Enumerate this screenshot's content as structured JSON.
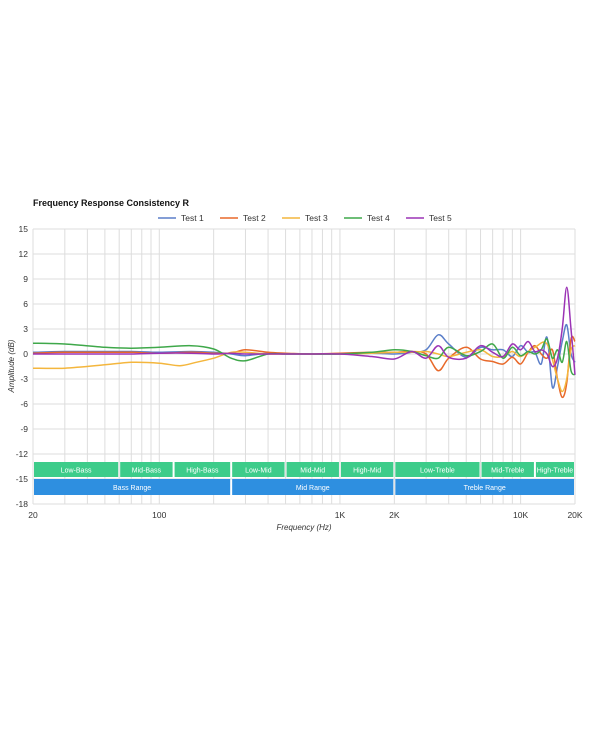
{
  "chart_data": {
    "type": "line",
    "title": "Frequency Response Consistency R",
    "xlabel": "Frequency (Hz)",
    "ylabel": "Amplitude (dB)",
    "xscale": "log",
    "xlim": [
      20,
      20000
    ],
    "ylim": [
      -18,
      15
    ],
    "grid": true,
    "legend_position": "top-center",
    "x_ticks": [
      {
        "value": 20,
        "label": "20"
      },
      {
        "value": 100,
        "label": "100"
      },
      {
        "value": 1000,
        "label": "1K"
      },
      {
        "value": 2000,
        "label": "2K"
      },
      {
        "value": 10000,
        "label": "10K"
      },
      {
        "value": 20000,
        "label": "20K"
      }
    ],
    "y_ticks": [
      15,
      12,
      9,
      6,
      3,
      0,
      -3,
      -6,
      -9,
      -12,
      -15,
      -18
    ],
    "x_grid": [
      30,
      40,
      50,
      60,
      70,
      80,
      90,
      100,
      200,
      300,
      400,
      500,
      600,
      700,
      800,
      900,
      1000,
      2000,
      3000,
      4000,
      5000,
      6000,
      7000,
      8000,
      9000,
      10000,
      20000
    ],
    "frequency_bands": [
      {
        "label": "Low-Bass",
        "from": 20,
        "to": 60
      },
      {
        "label": "Mid-Bass",
        "from": 60,
        "to": 120
      },
      {
        "label": "High-Bass",
        "from": 120,
        "to": 250
      },
      {
        "label": "Low-Mid",
        "from": 250,
        "to": 500
      },
      {
        "label": "Mid-Mid",
        "from": 500,
        "to": 1000
      },
      {
        "label": "High-Mid",
        "from": 1000,
        "to": 2000
      },
      {
        "label": "Low-Treble",
        "from": 2000,
        "to": 6000
      },
      {
        "label": "Mid-Treble",
        "from": 6000,
        "to": 12000
      },
      {
        "label": "High-Treble",
        "from": 12000,
        "to": 20000
      }
    ],
    "ranges": [
      {
        "label": "Bass Range",
        "from": 20,
        "to": 250
      },
      {
        "label": "Mid Range",
        "from": 250,
        "to": 2000
      },
      {
        "label": "Treble Range",
        "from": 2000,
        "to": 20000
      }
    ],
    "series": [
      {
        "name": "Test 1",
        "color": "#5b7fc9",
        "x": [
          20,
          30,
          50,
          70,
          100,
          150,
          200,
          250,
          300,
          400,
          500,
          700,
          1000,
          1500,
          2000,
          2500,
          3000,
          3500,
          4000,
          5000,
          6000,
          7000,
          8000,
          9000,
          10000,
          11000,
          12000,
          13000,
          14000,
          15000,
          16000,
          17000,
          18000,
          19000,
          20000
        ],
        "y": [
          0.2,
          0.3,
          0.3,
          0.3,
          0.2,
          0.3,
          0.2,
          0.0,
          -0.2,
          0.1,
          0.0,
          0.0,
          0.0,
          0.1,
          0.0,
          0.2,
          0.5,
          2.3,
          1.2,
          -0.4,
          0.8,
          0.5,
          0.5,
          -0.3,
          1.0,
          0.2,
          0.2,
          -1.2,
          2.0,
          -4.0,
          -1.5,
          1.5,
          3.5,
          0.0,
          -1.0
        ]
      },
      {
        "name": "Test 2",
        "color": "#e8692a",
        "x": [
          20,
          30,
          50,
          70,
          100,
          150,
          200,
          250,
          300,
          400,
          500,
          700,
          1000,
          1500,
          2000,
          2500,
          3000,
          3500,
          4000,
          5000,
          6000,
          7000,
          8000,
          9000,
          10000,
          11000,
          12000,
          13000,
          14000,
          15000,
          16000,
          17000,
          18000,
          19000,
          20000
        ],
        "y": [
          0.1,
          0.2,
          0.2,
          0.2,
          0.1,
          0.2,
          0.1,
          0.1,
          0.5,
          0.2,
          0.1,
          0.0,
          0.1,
          0.2,
          0.2,
          0.3,
          0.0,
          -2.0,
          -0.5,
          0.8,
          -0.6,
          -0.9,
          -1.2,
          -0.4,
          -1.2,
          0.2,
          1.0,
          0.0,
          -0.5,
          0.5,
          -3.0,
          -5.2,
          -3.5,
          1.8,
          1.5
        ]
      },
      {
        "name": "Test 3",
        "color": "#f4b63d",
        "x": [
          20,
          30,
          50,
          70,
          100,
          130,
          160,
          200,
          250,
          300,
          400,
          500,
          700,
          1000,
          1500,
          2000,
          2500,
          3000,
          3500,
          4000,
          5000,
          6000,
          7000,
          8000,
          9000,
          10000,
          12000,
          14000,
          16000,
          17000,
          18000,
          19000,
          20000
        ],
        "y": [
          -1.7,
          -1.7,
          -1.3,
          -1.0,
          -1.1,
          -1.4,
          -1.0,
          -0.5,
          0.2,
          0.2,
          0.0,
          0.0,
          0.0,
          0.0,
          0.1,
          0.2,
          0.2,
          0.3,
          0.0,
          -0.3,
          0.2,
          0.5,
          -0.3,
          -0.3,
          0.3,
          -0.3,
          0.8,
          1.2,
          -3.0,
          -4.5,
          -3.0,
          0.5,
          1.0
        ]
      },
      {
        "name": "Test 4",
        "color": "#3fa84a",
        "x": [
          20,
          30,
          50,
          70,
          100,
          150,
          200,
          250,
          300,
          400,
          500,
          700,
          1000,
          1500,
          2000,
          2500,
          3000,
          3500,
          4000,
          5000,
          6000,
          7000,
          8000,
          9000,
          10000,
          11000,
          12000,
          13000,
          14000,
          15000,
          16000,
          17000,
          18000,
          19000,
          20000
        ],
        "y": [
          1.3,
          1.2,
          0.8,
          0.7,
          0.8,
          1.0,
          0.6,
          -0.5,
          -0.8,
          0.0,
          0.0,
          0.0,
          0.0,
          0.2,
          0.5,
          0.3,
          -0.2,
          -0.5,
          0.8,
          -0.2,
          0.3,
          1.2,
          -0.5,
          0.8,
          -0.2,
          0.3,
          0.0,
          0.5,
          1.8,
          -0.5,
          0.5,
          -1.0,
          1.5,
          -2.0,
          -2.5
        ]
      },
      {
        "name": "Test 5",
        "color": "#9b33b5",
        "x": [
          20,
          30,
          50,
          70,
          100,
          150,
          200,
          250,
          300,
          400,
          500,
          700,
          1000,
          1500,
          2000,
          2500,
          3000,
          3500,
          4000,
          5000,
          6000,
          7000,
          8000,
          9000,
          10000,
          11000,
          12000,
          13000,
          14000,
          15000,
          16000,
          17000,
          18000,
          19000,
          20000
        ],
        "y": [
          0.0,
          0.0,
          0.0,
          0.0,
          0.1,
          0.1,
          0.0,
          0.1,
          0.0,
          0.0,
          0.0,
          0.0,
          0.0,
          -0.3,
          -0.6,
          0.3,
          -0.5,
          1.0,
          -0.4,
          -0.5,
          1.0,
          0.2,
          -0.3,
          1.2,
          0.5,
          1.5,
          0.3,
          0.5,
          0.0,
          -1.5,
          -0.5,
          3.0,
          8.0,
          3.0,
          -2.5
        ]
      }
    ]
  }
}
